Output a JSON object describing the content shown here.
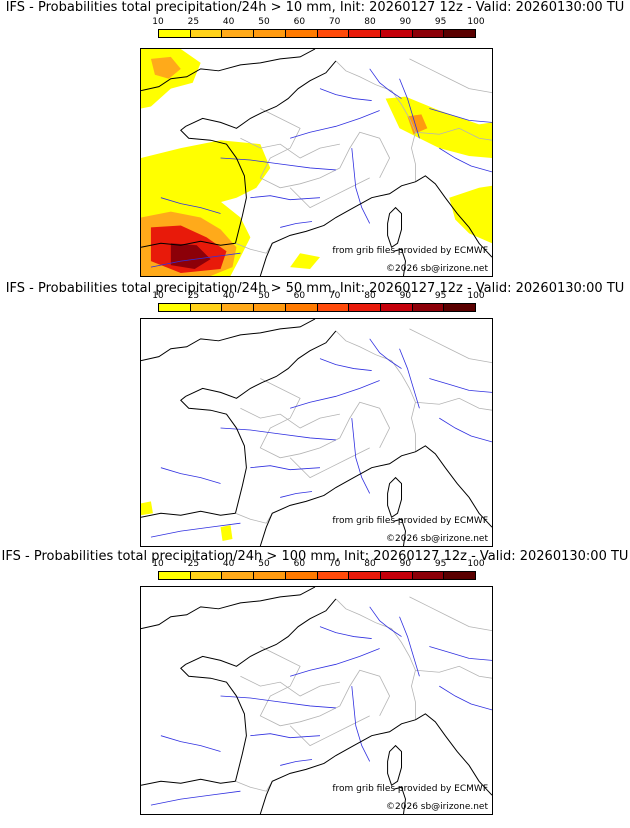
{
  "legend": {
    "ticks": [
      "10",
      "25",
      "40",
      "50",
      "60",
      "70",
      "80",
      "90",
      "95",
      "100"
    ],
    "colors": [
      "#ffff00",
      "#ffd21a",
      "#ffaa1a",
      "#ff9a10",
      "#ff7a00",
      "#ff4a0a",
      "#e81a0a",
      "#c4000a",
      "#8c0008",
      "#5a0000"
    ]
  },
  "panels": [
    {
      "title": "IFS - Probabilities total precipitation/24h > 10 mm, Init: 20260127 12z - Valid: 20260130:00 TU",
      "threshold": "10"
    },
    {
      "title": "IFS - Probabilities total precipitation/24h > 50 mm, Init: 20260127 12z - Valid: 20260130:00 TU",
      "threshold": "50"
    },
    {
      "title": "IFS - Probabilities total precipitation/24h > 100 mm, Init: 20260127 12z - Valid: 20260130:00 TU",
      "threshold": "100"
    }
  ],
  "credits": {
    "source": "from grib files provided by ECMWF",
    "copyright": "©2026 sb@irizone.net"
  },
  "colors": {
    "coast": "#000000",
    "rivers": "#3030e0",
    "borders": "#b4b4b4"
  }
}
